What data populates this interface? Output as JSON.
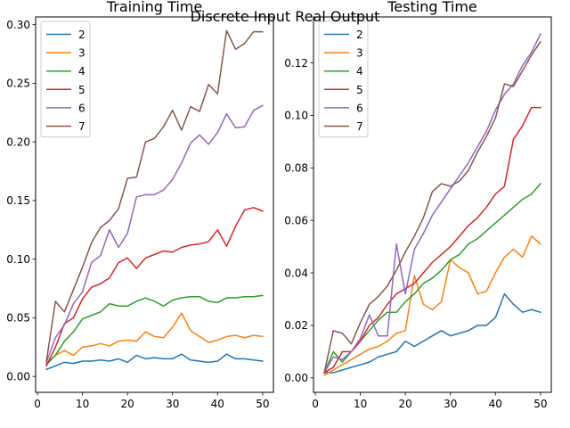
{
  "figure": {
    "suptitle": "Discrete Input Real Output"
  },
  "chart_data": [
    {
      "type": "line",
      "title": "Training Time",
      "xlabel": "",
      "ylabel": "",
      "xlim": [
        -0.4,
        52.4
      ],
      "ylim": [
        -0.0136,
        0.3066
      ],
      "xticks": [
        0,
        10,
        20,
        30,
        40,
        50
      ],
      "yticks": [
        0.0,
        0.05,
        0.1,
        0.15,
        0.2,
        0.25,
        0.3
      ],
      "ytick_format": 2,
      "legend": "top-left",
      "grid": false,
      "x": [
        2,
        4,
        6,
        8,
        10,
        12,
        14,
        16,
        18,
        20,
        22,
        24,
        26,
        28,
        30,
        32,
        34,
        36,
        38,
        40,
        42,
        44,
        46,
        48,
        50
      ],
      "series": [
        {
          "name": "2",
          "color": "#1f77b4",
          "values": [
            0.006,
            0.009,
            0.012,
            0.011,
            0.013,
            0.013,
            0.014,
            0.013,
            0.015,
            0.012,
            0.018,
            0.015,
            0.016,
            0.015,
            0.015,
            0.019,
            0.014,
            0.013,
            0.012,
            0.013,
            0.019,
            0.015,
            0.015,
            0.014,
            0.013
          ]
        },
        {
          "name": "3",
          "color": "#ff7f0e",
          "values": [
            0.011,
            0.018,
            0.022,
            0.018,
            0.025,
            0.026,
            0.028,
            0.026,
            0.03,
            0.031,
            0.03,
            0.038,
            0.034,
            0.033,
            0.042,
            0.054,
            0.039,
            0.034,
            0.029,
            0.031,
            0.034,
            0.035,
            0.033,
            0.035,
            0.034
          ]
        },
        {
          "name": "4",
          "color": "#2ca02c",
          "values": [
            0.01,
            0.018,
            0.03,
            0.038,
            0.049,
            0.052,
            0.055,
            0.062,
            0.06,
            0.06,
            0.064,
            0.067,
            0.064,
            0.06,
            0.065,
            0.067,
            0.068,
            0.068,
            0.064,
            0.063,
            0.067,
            0.067,
            0.068,
            0.068,
            0.069
          ]
        },
        {
          "name": "5",
          "color": "#d62728",
          "values": [
            0.009,
            0.025,
            0.045,
            0.05,
            0.066,
            0.076,
            0.079,
            0.084,
            0.097,
            0.101,
            0.092,
            0.101,
            0.104,
            0.107,
            0.106,
            0.11,
            0.112,
            0.113,
            0.115,
            0.125,
            0.111,
            0.128,
            0.142,
            0.144,
            0.141
          ]
        },
        {
          "name": "6",
          "color": "#9467bd",
          "values": [
            0.012,
            0.033,
            0.044,
            0.062,
            0.072,
            0.097,
            0.103,
            0.125,
            0.11,
            0.122,
            0.153,
            0.155,
            0.155,
            0.159,
            0.168,
            0.182,
            0.199,
            0.206,
            0.198,
            0.208,
            0.224,
            0.212,
            0.213,
            0.227,
            0.231
          ]
        },
        {
          "name": "7",
          "color": "#8c564b",
          "values": [
            0.013,
            0.064,
            0.055,
            0.074,
            0.093,
            0.114,
            0.127,
            0.133,
            0.143,
            0.169,
            0.17,
            0.2,
            0.203,
            0.213,
            0.227,
            0.21,
            0.23,
            0.226,
            0.249,
            0.241,
            0.295,
            0.279,
            0.284,
            0.294,
            0.294
          ]
        }
      ]
    },
    {
      "type": "line",
      "title": "Testing Time",
      "xlabel": "",
      "ylabel": "",
      "xlim": [
        -0.4,
        52.4
      ],
      "ylim": [
        -0.0055,
        0.1375
      ],
      "xticks": [
        0,
        10,
        20,
        30,
        40,
        50
      ],
      "yticks": [
        0.0,
        0.02,
        0.04,
        0.06,
        0.08,
        0.1,
        0.12
      ],
      "ytick_format": 2,
      "legend": "top-left",
      "grid": false,
      "x": [
        2,
        4,
        6,
        8,
        10,
        12,
        14,
        16,
        18,
        20,
        22,
        24,
        26,
        28,
        30,
        32,
        34,
        36,
        38,
        40,
        42,
        44,
        46,
        48,
        50
      ],
      "series": [
        {
          "name": "2",
          "color": "#1f77b4",
          "values": [
            0.002,
            0.002,
            0.003,
            0.004,
            0.005,
            0.006,
            0.008,
            0.009,
            0.01,
            0.014,
            0.012,
            0.014,
            0.016,
            0.018,
            0.016,
            0.017,
            0.018,
            0.02,
            0.02,
            0.023,
            0.032,
            0.028,
            0.025,
            0.026,
            0.025
          ]
        },
        {
          "name": "3",
          "color": "#ff7f0e",
          "values": [
            0.001,
            0.003,
            0.005,
            0.007,
            0.009,
            0.011,
            0.012,
            0.014,
            0.017,
            0.018,
            0.039,
            0.028,
            0.026,
            0.029,
            0.045,
            0.042,
            0.04,
            0.032,
            0.033,
            0.04,
            0.046,
            0.049,
            0.046,
            0.054,
            0.051
          ]
        },
        {
          "name": "4",
          "color": "#2ca02c",
          "values": [
            0.002,
            0.01,
            0.006,
            0.01,
            0.014,
            0.018,
            0.022,
            0.025,
            0.025,
            0.029,
            0.032,
            0.036,
            0.038,
            0.041,
            0.045,
            0.047,
            0.051,
            0.053,
            0.056,
            0.059,
            0.062,
            0.065,
            0.068,
            0.07,
            0.074
          ]
        },
        {
          "name": "5",
          "color": "#d62728",
          "values": [
            0.002,
            0.004,
            0.01,
            0.01,
            0.014,
            0.02,
            0.023,
            0.028,
            0.032,
            0.034,
            0.036,
            0.04,
            0.044,
            0.047,
            0.05,
            0.054,
            0.058,
            0.061,
            0.065,
            0.07,
            0.073,
            0.091,
            0.096,
            0.103,
            0.103
          ]
        },
        {
          "name": "6",
          "color": "#9467bd",
          "values": [
            0.002,
            0.008,
            0.007,
            0.01,
            0.015,
            0.024,
            0.016,
            0.016,
            0.051,
            0.032,
            0.049,
            0.055,
            0.062,
            0.067,
            0.072,
            0.077,
            0.082,
            0.088,
            0.094,
            0.102,
            0.108,
            0.112,
            0.119,
            0.124,
            0.131
          ]
        },
        {
          "name": "7",
          "color": "#8c564b",
          "values": [
            0.002,
            0.018,
            0.017,
            0.013,
            0.021,
            0.028,
            0.031,
            0.035,
            0.041,
            0.048,
            0.054,
            0.061,
            0.071,
            0.074,
            0.073,
            0.075,
            0.079,
            0.086,
            0.092,
            0.099,
            0.112,
            0.111,
            0.117,
            0.123,
            0.128
          ]
        }
      ]
    }
  ]
}
